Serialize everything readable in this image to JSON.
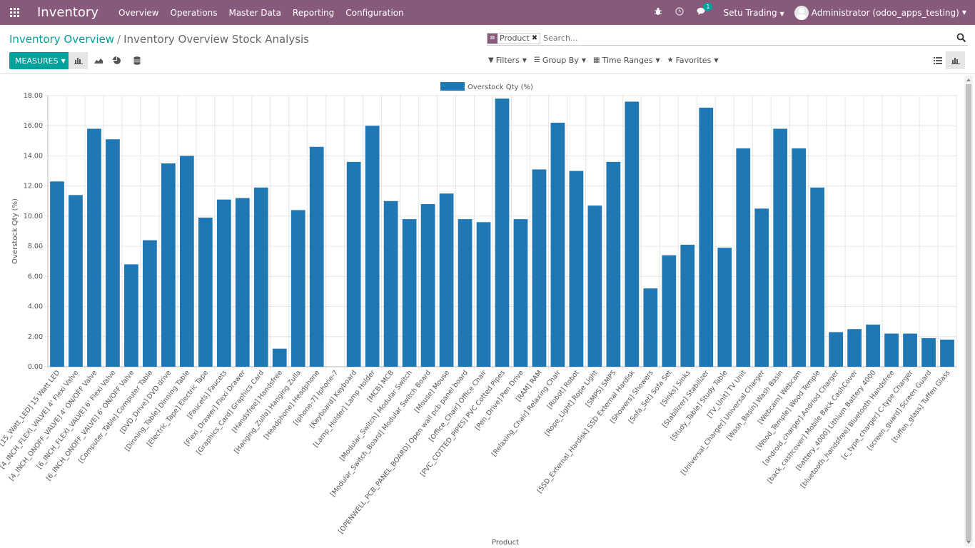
{
  "nav": {
    "brand": "Inventory",
    "menu": [
      "Overview",
      "Operations",
      "Master Data",
      "Reporting",
      "Configuration"
    ],
    "chat_badge": "1",
    "company": "Setu Trading",
    "user": "Administrator (odoo_apps_testing)"
  },
  "breadcrumb": {
    "parent": "Inventory Overview",
    "separator": "/",
    "current": "Inventory Overview Stock Analysis"
  },
  "search": {
    "facet": "Product",
    "placeholder": "Search..."
  },
  "toolbar": {
    "measures": "MEASURES",
    "filters": "Filters",
    "group_by": "Group By",
    "time_ranges": "Time Ranges",
    "favorites": "Favorites"
  },
  "colors": {
    "brand": "#875a7b",
    "accent": "#00a09d",
    "bar": "#1f77b4"
  },
  "chart_data": {
    "type": "bar",
    "xlabel": "Product",
    "ylabel": "Overstock Qty (%)",
    "ylim": [
      0,
      18
    ],
    "yticks": [
      "0.00",
      "2.00",
      "4.00",
      "6.00",
      "8.00",
      "10.00",
      "12.00",
      "14.00",
      "16.00",
      "18.00"
    ],
    "legend_position": "top-center",
    "grid": true,
    "series": [
      {
        "name": "Overstock Qty (%)",
        "values": [
          12.3,
          11.4,
          15.8,
          15.1,
          6.8,
          8.4,
          13.5,
          14.0,
          9.9,
          11.1,
          11.2,
          11.9,
          1.2,
          10.4,
          14.6,
          0,
          13.6,
          16.0,
          11.0,
          9.8,
          10.8,
          11.5,
          9.8,
          9.6,
          17.8,
          9.8,
          13.1,
          16.2,
          13.0,
          10.7,
          13.6,
          17.6,
          5.2,
          7.4,
          8.1,
          17.2,
          7.9,
          14.5,
          10.5,
          15.8,
          14.5,
          11.9,
          2.3,
          2.5,
          2.8,
          2.2,
          2.2,
          1.9,
          1.8
        ]
      }
    ],
    "categories": [
      "[15_Watt_LED] 15 Watt LED",
      "[4_INCH_FLEXI_VALVE] 4' Flexi Valve",
      "[4_INCH_ONOFF_VALVE] 4' ON/OFF Valve",
      "[6_INCH_FLEXI_VALVE] 6' Flexi Valve",
      "[6_INCH_ONOFF_VALVE] 6' ON/OFF Valve",
      "[Computer_Table] Computer Table",
      "[DVD_Drive] DVD drive",
      "[Dinning_Table] Dinning Table",
      "[Electric_Tape] Electric Tape",
      "[Faucets] Faucets",
      "[Flexi_Drawer] Flexi Drawer",
      "[Graphics_Card] Graphics Card",
      "[Handsfree] Handsfree",
      "[Hanging_Zulla] Hanging Zulla",
      "[Headphone] Headphone",
      "[Iphone-7] Iphone-7",
      "[Keyboard] Keyboard",
      "[Lamp_Holder] Lamp Holder",
      "[MCB] MCB",
      "[Modular_Switch] Modular Switch",
      "[Modular_Switch_Board] Modular Switch Board",
      "[Mouse] Mouse",
      "[OPENWELL_PCB_PANEL_BOARD] Open wall pcb panel board",
      "[Office_Chair] Office Chair",
      "[PVC_COTTED_PIPES] PVC Cotted Pipes",
      "[Pen_Drive] Pen Drive",
      "[RAM] RAM",
      "[Relaxing_Chair] Relaxing Chair",
      "[Robot] Robot",
      "[Rope_Light] Rope Light",
      "[SMPS] SMPS",
      "[SSD_External_Hardisk] SSD External Hardisk",
      "[Showers] Showers",
      "[Sofa_Set] Sofa Set",
      "[Sinks] Sinks",
      "[Stabilizer] Stabilizer",
      "[Study_Table] Study Table",
      "[TV_Unit] TV Unit",
      "[Universal_Charger] Universal Charger",
      "[Wash_Basin] Wash Basin",
      "[Webcam] Webcam",
      "[Wood_Temple] Wood Temple",
      "[android_charger] Andriod Charger",
      "[back_cashcover] Mobile Back CashCover",
      "[battery_4000] Lithium Battery 4000",
      "[bluetooth_handsfree] Bluetooth Handsfree",
      "[c_type_charger] C-type Charger",
      "[screen_guard] Screen Guard",
      "[tuffen_glass] Tuffen Glass"
    ]
  }
}
